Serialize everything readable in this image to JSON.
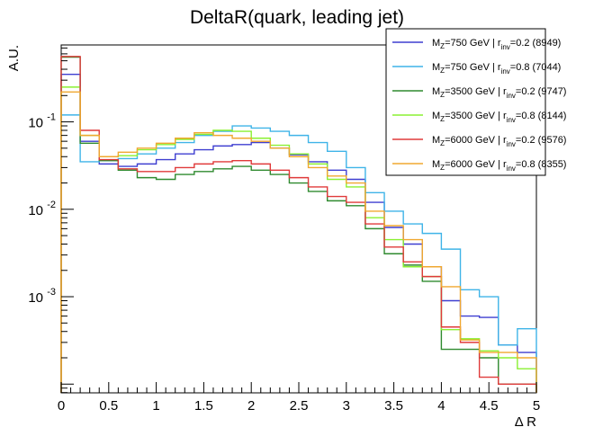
{
  "chart_data": {
    "type": "histogram",
    "title": "DeltaR(quark, leading jet)",
    "xlabel": "Δ R",
    "ylabel": "A.U.",
    "xlim": [
      0,
      5
    ],
    "ylim_log10": [
      -4.1,
      -0.12
    ],
    "y_scale": "log",
    "grid": false,
    "legend_position": "top-right",
    "x_ticks": [
      {
        "value": 0,
        "label": "0"
      },
      {
        "value": 0.5,
        "label": "0.5"
      },
      {
        "value": 1,
        "label": "1"
      },
      {
        "value": 1.5,
        "label": "1.5"
      },
      {
        "value": 2,
        "label": "2"
      },
      {
        "value": 2.5,
        "label": "2.5"
      },
      {
        "value": 3,
        "label": "3"
      },
      {
        "value": 3.5,
        "label": "3.5"
      },
      {
        "value": 4,
        "label": "4"
      },
      {
        "value": 4.5,
        "label": "4.5"
      },
      {
        "value": 5,
        "label": "5"
      }
    ],
    "y_ticks": [
      {
        "value": 0.1,
        "base": "10",
        "exp": "-1"
      },
      {
        "value": 0.01,
        "base": "10",
        "exp": "-2"
      },
      {
        "value": 0.001,
        "base": "10",
        "exp": "-3"
      }
    ],
    "bin_edges": [
      0,
      0.2,
      0.4,
      0.6,
      0.8,
      1.0,
      1.2,
      1.4,
      1.6,
      1.8,
      2.0,
      2.2,
      2.4,
      2.6,
      2.8,
      3.0,
      3.2,
      3.4,
      3.6,
      3.8,
      4.0,
      4.2,
      4.4,
      4.6,
      4.8,
      5.0
    ],
    "series": [
      {
        "m": "M",
        "msub": "Z",
        "mtext": "=750 GeV | r",
        "rsub": "inv",
        "rtext": "=0.2 (8949)",
        "color": "#3f3fd0",
        "values": [
          0.35,
          0.06,
          0.033,
          0.031,
          0.033,
          0.037,
          0.043,
          0.048,
          0.053,
          0.055,
          0.058,
          0.05,
          0.042,
          0.035,
          0.028,
          0.022,
          0.012,
          0.0062,
          0.004,
          0.0022,
          0.0009,
          0.0006,
          0.00058,
          0.00028,
          0.00023
        ]
      },
      {
        "m": "M",
        "msub": "Z",
        "mtext": "=750 GeV | r",
        "rsub": "inv",
        "rtext": "=0.8 (7044)",
        "color": "#3fb4e8",
        "values": [
          0.12,
          0.035,
          0.036,
          0.038,
          0.043,
          0.05,
          0.058,
          0.07,
          0.078,
          0.09,
          0.085,
          0.078,
          0.07,
          0.058,
          0.046,
          0.03,
          0.0155,
          0.0095,
          0.0068,
          0.0053,
          0.0035,
          0.0012,
          0.001,
          0.00028,
          0.00043
        ]
      },
      {
        "m": "M",
        "msub": "Z",
        "mtext": "=3500 GeV | r",
        "rsub": "inv",
        "rtext": "=0.2 (9747)",
        "color": "#2f8a2f",
        "values": [
          0.55,
          0.057,
          0.036,
          0.028,
          0.023,
          0.022,
          0.025,
          0.027,
          0.029,
          0.031,
          0.028,
          0.025,
          0.02,
          0.016,
          0.0125,
          0.011,
          0.006,
          0.0031,
          0.0023,
          0.0015,
          0.00025,
          0.00025,
          0.0002,
          0.0001,
          0.0001
        ]
      },
      {
        "m": "M",
        "msub": "Z",
        "mtext": "=3500 GeV | r",
        "rsub": "inv",
        "rtext": "=0.8 (8144)",
        "color": "#8af032",
        "values": [
          0.25,
          0.07,
          0.04,
          0.041,
          0.048,
          0.055,
          0.063,
          0.072,
          0.08,
          0.078,
          0.065,
          0.054,
          0.043,
          0.033,
          0.022,
          0.018,
          0.008,
          0.0045,
          0.0022,
          0.0017,
          0.00042,
          0.00033,
          0.00024,
          0.0002,
          0.00015
        ]
      },
      {
        "m": "M",
        "msub": "Z",
        "mtext": "=6000 GeV | r",
        "rsub": "inv",
        "rtext": "=0.2 (9576)",
        "color": "#e03a3a",
        "values": [
          0.56,
          0.08,
          0.037,
          0.029,
          0.027,
          0.027,
          0.03,
          0.033,
          0.035,
          0.036,
          0.033,
          0.028,
          0.023,
          0.018,
          0.014,
          0.012,
          0.0068,
          0.0037,
          0.0025,
          0.0017,
          0.00045,
          0.0003,
          0.00012,
          0.0001,
          0.0001
        ]
      },
      {
        "m": "M",
        "msub": "Z",
        "mtext": "=6000 GeV | r",
        "rsub": "inv",
        "rtext": "=0.8 (8355)",
        "color": "#f0a830",
        "values": [
          0.22,
          0.07,
          0.04,
          0.045,
          0.05,
          0.057,
          0.065,
          0.075,
          0.07,
          0.065,
          0.06,
          0.05,
          0.04,
          0.03,
          0.024,
          0.02,
          0.0095,
          0.0065,
          0.0045,
          0.0022,
          0.0013,
          0.00032,
          0.00023,
          0.00023,
          0.0002
        ]
      }
    ]
  }
}
